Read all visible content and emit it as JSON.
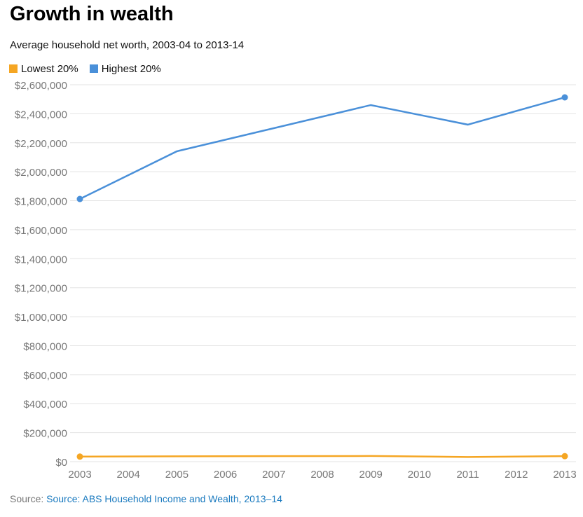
{
  "chart_data": {
    "type": "line",
    "title": "Growth in wealth",
    "subtitle": "Average household net worth, 2003-04 to 2013-14",
    "xlabel": "",
    "ylabel": "",
    "x": [
      2003,
      2005,
      2009,
      2011,
      2013
    ],
    "x_ticks": [
      "2003",
      "2004",
      "2005",
      "2006",
      "2007",
      "2008",
      "2009",
      "2010",
      "2011",
      "2012",
      "2013"
    ],
    "y_ticks": [
      "$0",
      "$200,000",
      "$400,000",
      "$600,000",
      "$800,000",
      "$1,000,000",
      "$1,200,000",
      "$1,400,000",
      "$1,600,000",
      "$1,800,000",
      "$2,000,000",
      "$2,200,000",
      "$2,400,000",
      "$2,600,000"
    ],
    "ylim": [
      0,
      2600000
    ],
    "xlim": [
      2003,
      2013
    ],
    "grid": true,
    "legend_position": "top-left",
    "series": [
      {
        "name": "Lowest 20%",
        "color": "#f5a623",
        "values": [
          35000,
          37000,
          39000,
          32000,
          38000
        ]
      },
      {
        "name": "Highest 20%",
        "color": "#4a90d9",
        "values": [
          1812000,
          2141000,
          2460000,
          2325000,
          2513000
        ]
      }
    ]
  },
  "source_label": "Source:",
  "source_link": "Source: ABS Household Income and Wealth, 2013–14"
}
